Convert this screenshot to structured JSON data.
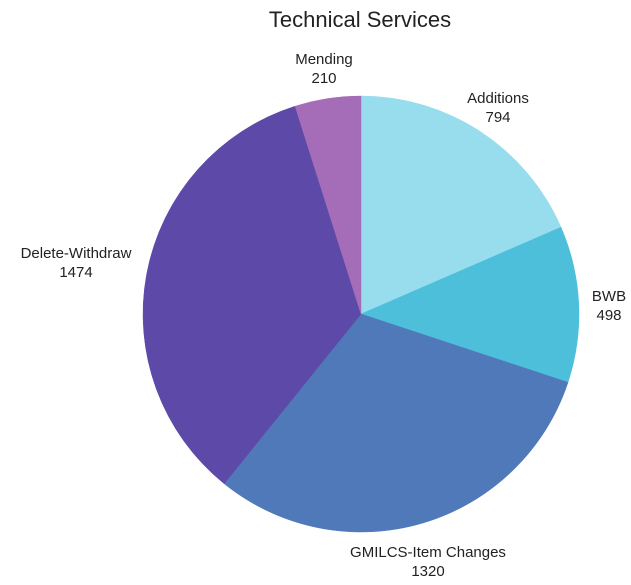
{
  "chart_data": {
    "type": "pie",
    "title": "Technical Services",
    "slices": [
      {
        "label": "Additions",
        "value": 794,
        "color": "#97dded"
      },
      {
        "label": "BWB",
        "value": 498,
        "color": "#4dbfdb"
      },
      {
        "label": "GMILCS-Item Changes",
        "value": 1320,
        "color": "#4f79b9"
      },
      {
        "label": "Delete-Withdraw",
        "value": 1474,
        "color": "#5d4aa8"
      },
      {
        "label": "Mending",
        "value": 210,
        "color": "#a56db8"
      }
    ],
    "start_angle": "12 o'clock",
    "direction": "clockwise",
    "legend": "none",
    "labels": "outside, name above value"
  }
}
